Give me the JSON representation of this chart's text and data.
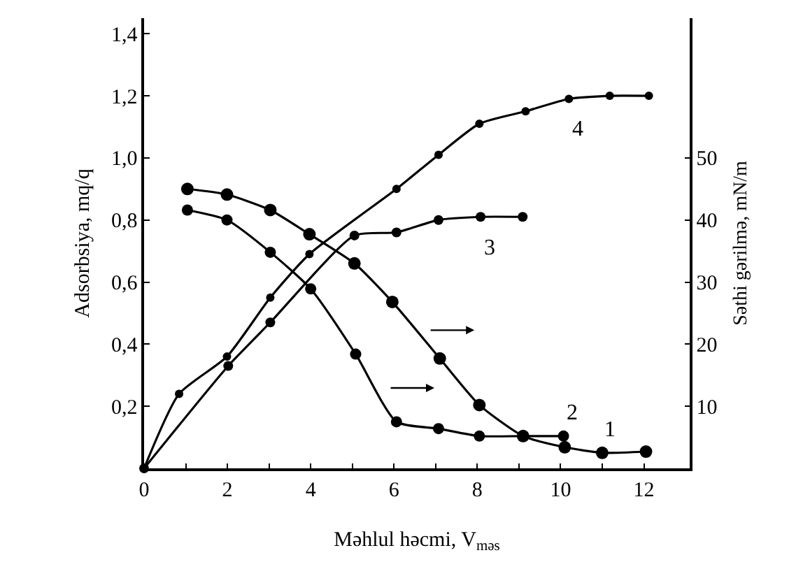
{
  "chart_data": {
    "type": "line",
    "xlabel": "Məhlul həcmi, V$_{məs}$",
    "ylabel": "Adsorbsiya, mq/q",
    "y2label": "Səthi gərilmə, mN/m",
    "xlim": [
      0,
      13.1
    ],
    "ylim": [
      0,
      1.45
    ],
    "y2lim": [
      0,
      72.5
    ],
    "xticks": [
      0,
      {
        "value": 1,
        "label": null
      },
      2,
      {
        "value": 3,
        "label": null
      },
      4,
      {
        "value": 5,
        "label": null
      },
      6,
      {
        "value": 7,
        "label": null
      },
      8,
      {
        "value": 9,
        "label": null
      },
      10,
      {
        "value": 11,
        "label": null
      },
      12
    ],
    "yticks": [
      {
        "value": 0.2,
        "label": "0,2"
      },
      {
        "value": 0.4,
        "label": "0,4"
      },
      {
        "value": 0.6,
        "label": "0,6"
      },
      {
        "value": 0.8,
        "label": "0,8"
      },
      {
        "value": 1.0,
        "label": "1,0"
      },
      {
        "value": 1.2,
        "label": "1,2"
      },
      {
        "value": 1.4,
        "label": "1,4"
      }
    ],
    "y2ticks": [
      10,
      20,
      30,
      40,
      50
    ],
    "legend": false,
    "marker": "circle",
    "line_style": "solid",
    "series": [
      {
        "name": "1",
        "color": "#000000",
        "axis": "y2",
        "x": [
          1.04,
          1.99,
          3.03,
          3.97,
          5.05,
          5.96,
          7.1,
          8.05,
          9.1,
          10.1,
          11.0,
          12.05
        ],
        "values": [
          45.0,
          44.1,
          41.6,
          37.7,
          33.0,
          26.8,
          17.7,
          10.2,
          5.2,
          3.4,
          2.5,
          2.7
        ]
      },
      {
        "name": "2",
        "color": "#000000",
        "axis": "y2",
        "x": [
          1.04,
          1.99,
          3.03,
          4.0,
          5.08,
          6.06,
          7.07,
          8.05,
          9.1,
          10.07
        ],
        "values": [
          41.6,
          40.0,
          34.8,
          28.9,
          18.4,
          7.5,
          6.4,
          5.2,
          5.2,
          5.2
        ]
      },
      {
        "name": "3",
        "color": "#000000",
        "axis": "y",
        "x": [
          0,
          2.02,
          3.03,
          5.05,
          6.06,
          7.07,
          8.08,
          9.09
        ],
        "values": [
          0,
          0.33,
          0.47,
          0.75,
          0.76,
          0.8,
          0.81,
          0.81
        ]
      },
      {
        "name": "4",
        "color": "#000000",
        "axis": "y",
        "x": [
          0,
          0.84,
          1.99,
          3.03,
          3.97,
          6.06,
          7.07,
          8.05,
          9.16,
          10.2,
          11.18,
          12.12
        ],
        "values": [
          0,
          0.24,
          0.36,
          0.55,
          0.69,
          0.9,
          1.01,
          1.11,
          1.15,
          1.19,
          1.2,
          1.2
        ]
      }
    ]
  }
}
